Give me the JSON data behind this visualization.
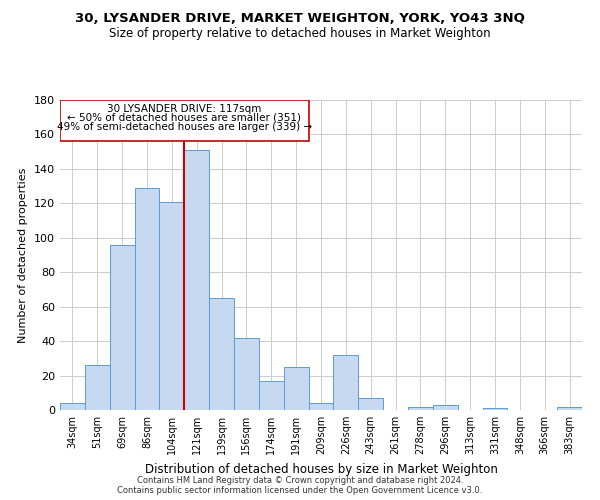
{
  "title1": "30, LYSANDER DRIVE, MARKET WEIGHTON, YORK, YO43 3NQ",
  "title2": "Size of property relative to detached houses in Market Weighton",
  "xlabel": "Distribution of detached houses by size in Market Weighton",
  "ylabel": "Number of detached properties",
  "categories": [
    "34sqm",
    "51sqm",
    "69sqm",
    "86sqm",
    "104sqm",
    "121sqm",
    "139sqm",
    "156sqm",
    "174sqm",
    "191sqm",
    "209sqm",
    "226sqm",
    "243sqm",
    "261sqm",
    "278sqm",
    "296sqm",
    "313sqm",
    "331sqm",
    "348sqm",
    "366sqm",
    "383sqm"
  ],
  "values": [
    4,
    26,
    96,
    129,
    121,
    151,
    65,
    42,
    17,
    25,
    4,
    32,
    7,
    0,
    2,
    3,
    0,
    1,
    0,
    0,
    2
  ],
  "bar_color": "#c6d9f0",
  "bar_edge_color": "#5b9bd5",
  "annotation_line1": "30 LYSANDER DRIVE: 117sqm",
  "annotation_line2": "← 50% of detached houses are smaller (351)",
  "annotation_line3": "49% of semi-detached houses are larger (339) →",
  "ylim": [
    0,
    180
  ],
  "yticks": [
    0,
    20,
    40,
    60,
    80,
    100,
    120,
    140,
    160,
    180
  ],
  "grid_color": "#cccccc",
  "footer1": "Contains HM Land Registry data © Crown copyright and database right 2024.",
  "footer2": "Contains public sector information licensed under the Open Government Licence v3.0.",
  "red_line_color": "#cc0000",
  "box_edge_color": "#cc0000",
  "red_line_x": 5.0
}
